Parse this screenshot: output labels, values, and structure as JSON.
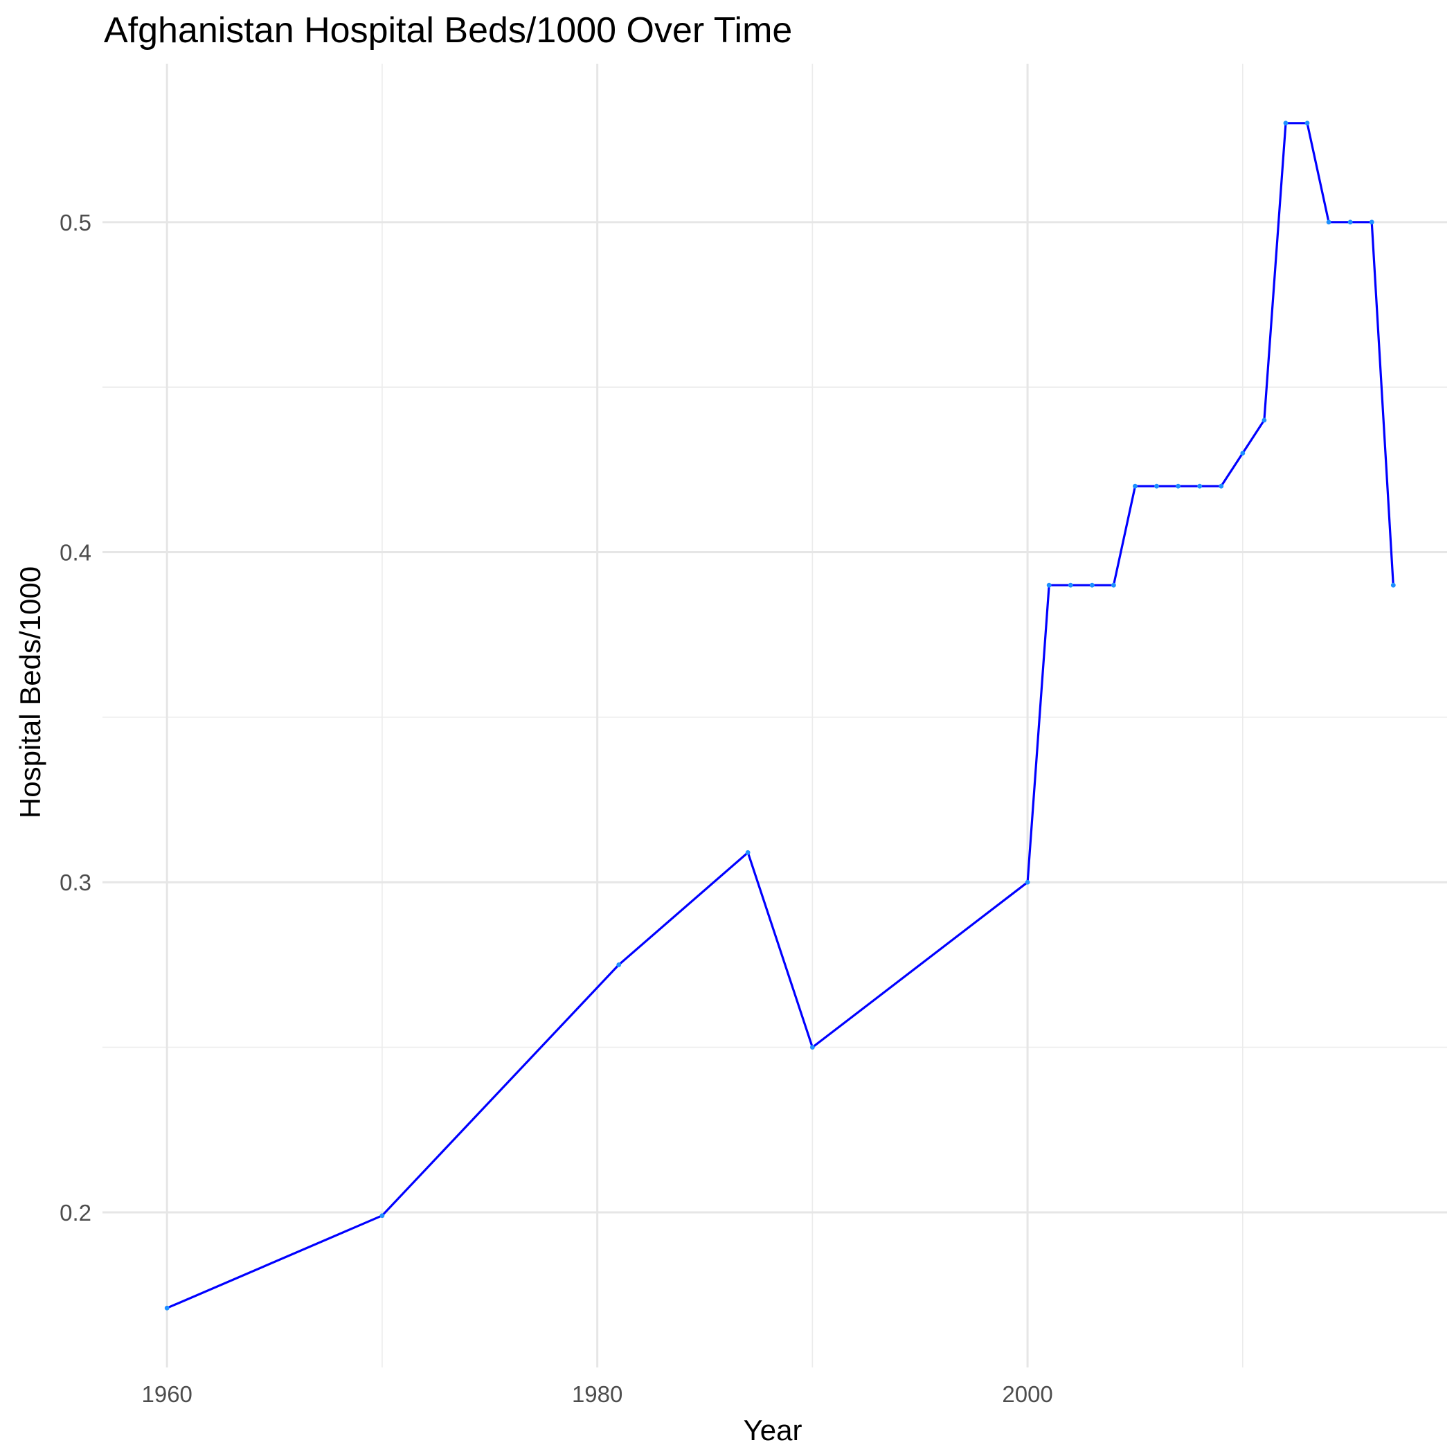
{
  "chart_data": {
    "type": "line",
    "title": "Afghanistan Hospital Beds/1000 Over Time",
    "xlabel": "Year",
    "ylabel": "Hospital Beds/1000",
    "xlim": [
      1957,
      2019.5
    ],
    "ylim": [
      0.153,
      0.548
    ],
    "x_ticks": [
      1960,
      1980,
      2000
    ],
    "x_tick_labels": [
      "1960",
      "1980",
      "2000"
    ],
    "x_minor_ticks": [
      1970,
      1990,
      2010
    ],
    "y_ticks": [
      0.2,
      0.3,
      0.4,
      0.5
    ],
    "y_tick_labels": [
      "0.2",
      "0.3",
      "0.4",
      "0.5"
    ],
    "y_minor_ticks": [
      0.25,
      0.35,
      0.45
    ],
    "grid": true,
    "line_color": "#0000ff",
    "series": [
      {
        "x": [
          1960,
          1970,
          1981,
          1987,
          1990,
          2000,
          2001,
          2002,
          2003,
          2004,
          2005,
          2006,
          2007,
          2008,
          2009,
          2010,
          2011,
          2012,
          2013,
          2014,
          2015,
          2016,
          2017
        ],
        "values": [
          0.171,
          0.199,
          0.275,
          0.309,
          0.25,
          0.3,
          0.39,
          0.39,
          0.39,
          0.39,
          0.42,
          0.42,
          0.42,
          0.42,
          0.42,
          0.43,
          0.44,
          0.53,
          0.53,
          0.5,
          0.5,
          0.5,
          0.39
        ]
      }
    ]
  }
}
